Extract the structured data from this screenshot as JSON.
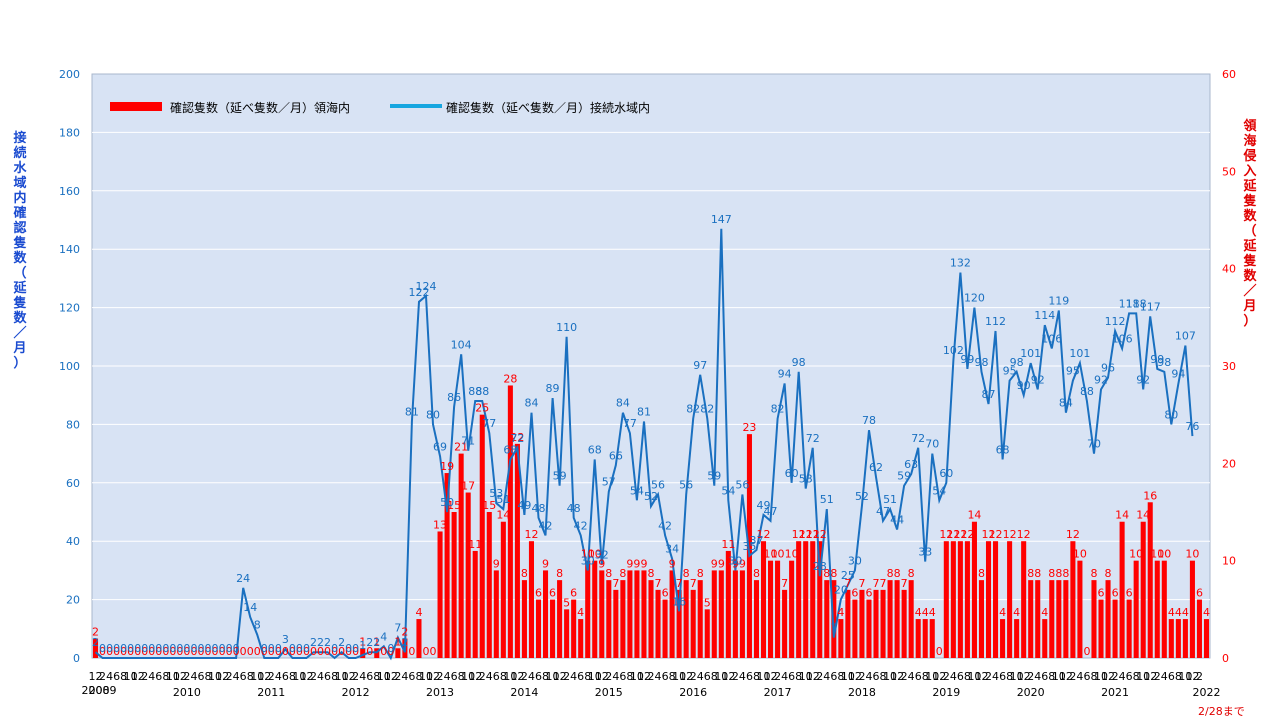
{
  "chart_data": {
    "type": "bar+line",
    "title": "",
    "legend": {
      "placement": "top-left",
      "items": [
        {
          "label": "確認隻数（延べ隻数／月）領海内",
          "color": "#ff0000"
        },
        {
          "label": "確認隻数（延べ隻数／月）接続水域内",
          "color": "#1a70c0"
        }
      ]
    },
    "left_axis": {
      "label": "接続水域内確認隻数（延隻数／月）",
      "min": 0,
      "max": 200,
      "step": 20,
      "color": "#1a70c0"
    },
    "right_axis": {
      "label": "領海侵入延隻数（延隻数／月）",
      "min": 0,
      "max": 60,
      "step": 10,
      "color": "#ff0000"
    },
    "note": "2/28まで",
    "month_ticks": [
      "12",
      "2",
      "4",
      "6",
      "8",
      "10",
      "12",
      "2",
      "4",
      "6",
      "8",
      "10",
      "12",
      "2",
      "4",
      "6",
      "8",
      "10",
      "12",
      "2",
      "4",
      "6",
      "8",
      "10",
      "12",
      "2",
      "4",
      "6",
      "8",
      "10",
      "12",
      "2",
      "4",
      "6",
      "8",
      "10",
      "12",
      "2",
      "4",
      "6",
      "8",
      "10",
      "12",
      "2",
      "4",
      "6",
      "8",
      "10",
      "12",
      "2",
      "4",
      "6",
      "8",
      "10",
      "12",
      "2",
      "4",
      "6",
      "8",
      "10",
      "12",
      "2",
      "4",
      "6",
      "8",
      "10",
      "12",
      "2",
      "4",
      "6",
      "8",
      "10",
      "12",
      "2",
      "4",
      "6",
      "8",
      "10",
      "12",
      "2",
      "4",
      "6",
      "8",
      "10",
      "12",
      "2",
      "4",
      "6",
      "8",
      "10",
      "12",
      "2",
      "4",
      "6",
      "8",
      "10",
      "12",
      "2",
      "4",
      "6",
      "8",
      "10",
      "12",
      "2",
      "4",
      "6",
      "8",
      "10",
      "12",
      "2",
      "4",
      "6",
      "8",
      "10",
      "12",
      "2",
      "4",
      "6",
      "8",
      "10",
      "12",
      "2",
      "4",
      "6",
      "8",
      "10",
      "12",
      "2",
      "4",
      "6",
      "8",
      "10",
      "12",
      "2",
      "4",
      "6",
      "8",
      "10",
      "12",
      "2",
      "4",
      "6",
      "8",
      "10",
      "12",
      "2",
      "4",
      "6",
      "8",
      "10",
      "12",
      "2",
      "4",
      "6",
      "8",
      "10",
      "12",
      "2"
    ],
    "years": [
      {
        "label": "2008",
        "at": 0
      },
      {
        "label": "2009",
        "at": 1
      },
      {
        "label": "2010",
        "at": 13
      },
      {
        "label": "2011",
        "at": 25
      },
      {
        "label": "2012",
        "at": 37
      },
      {
        "label": "2013",
        "at": 49
      },
      {
        "label": "2014",
        "at": 61
      },
      {
        "label": "2015",
        "at": 73
      },
      {
        "label": "2016",
        "at": 85
      },
      {
        "label": "2017",
        "at": 97
      },
      {
        "label": "2018",
        "at": 109
      },
      {
        "label": "2019",
        "at": 121
      },
      {
        "label": "2020",
        "at": 133
      },
      {
        "label": "2021",
        "at": 145
      },
      {
        "label": "2022",
        "at": 158
      }
    ],
    "series": [
      {
        "name": "確認隻数（延べ隻数／月）領海内",
        "axis": "right",
        "kind": "bar",
        "values": [
          2,
          0,
          0,
          0,
          0,
          0,
          0,
          0,
          0,
          0,
          0,
          0,
          0,
          0,
          0,
          0,
          0,
          0,
          0,
          0,
          0,
          0,
          0,
          0,
          0,
          0,
          0,
          0,
          0,
          0,
          0,
          0,
          0,
          0,
          0,
          0,
          0,
          0,
          1,
          0,
          1,
          0,
          0,
          1,
          2,
          0,
          4,
          0,
          0,
          13,
          19,
          15,
          21,
          17,
          11,
          25,
          15,
          9,
          14,
          28,
          22,
          8,
          12,
          6,
          9,
          6,
          8,
          5,
          6,
          4,
          10,
          10,
          9,
          8,
          7,
          8,
          9,
          9,
          9,
          8,
          7,
          6,
          9,
          7,
          8,
          7,
          8,
          5,
          9,
          9,
          11,
          9,
          9,
          23,
          8,
          12,
          10,
          10,
          7,
          10,
          12,
          12,
          12,
          12,
          8,
          8,
          4,
          7,
          6,
          7,
          6,
          7,
          7,
          8,
          8,
          7,
          8,
          4,
          4,
          4,
          0,
          12,
          12,
          12,
          12,
          14,
          8,
          12,
          12,
          4,
          12,
          4,
          12,
          8,
          8,
          4,
          8,
          8,
          8,
          12,
          10,
          0,
          8,
          6,
          8,
          6,
          14,
          6,
          10,
          14,
          16,
          10,
          10,
          4,
          4,
          4,
          10,
          6,
          4
        ]
      },
      {
        "name": "確認隻数（延べ隻数／月）接続水域内",
        "axis": "left",
        "kind": "line",
        "values": [
          2,
          0,
          0,
          0,
          0,
          0,
          0,
          0,
          0,
          0,
          0,
          0,
          0,
          0,
          0,
          0,
          0,
          0,
          0,
          0,
          0,
          24,
          14,
          8,
          0,
          0,
          0,
          3,
          0,
          0,
          0,
          2,
          2,
          2,
          0,
          2,
          0,
          0,
          1,
          2,
          2,
          4,
          0,
          7,
          2,
          81,
          122,
          124,
          80,
          69,
          50,
          86,
          104,
          71,
          88,
          88,
          77,
          53,
          51,
          68,
          72,
          49,
          84,
          48,
          42,
          89,
          59,
          110,
          48,
          42,
          30,
          68,
          32,
          57,
          66,
          84,
          77,
          54,
          81,
          52,
          56,
          42,
          34,
          16,
          56,
          82,
          97,
          82,
          59,
          147,
          54,
          30,
          56,
          35,
          37,
          49,
          47,
          82,
          94,
          60,
          98,
          58,
          72,
          28,
          51,
          7,
          20,
          25,
          30,
          52,
          78,
          62,
          47,
          51,
          44,
          59,
          63,
          72,
          33,
          70,
          54,
          60,
          102,
          132,
          99,
          120,
          98,
          87,
          112,
          68,
          95,
          98,
          90,
          101,
          92,
          114,
          106,
          119,
          84,
          95,
          101,
          88,
          70,
          92,
          96,
          112,
          106,
          118,
          118,
          92,
          117,
          99,
          98,
          80,
          94,
          107,
          76
        ]
      }
    ]
  }
}
